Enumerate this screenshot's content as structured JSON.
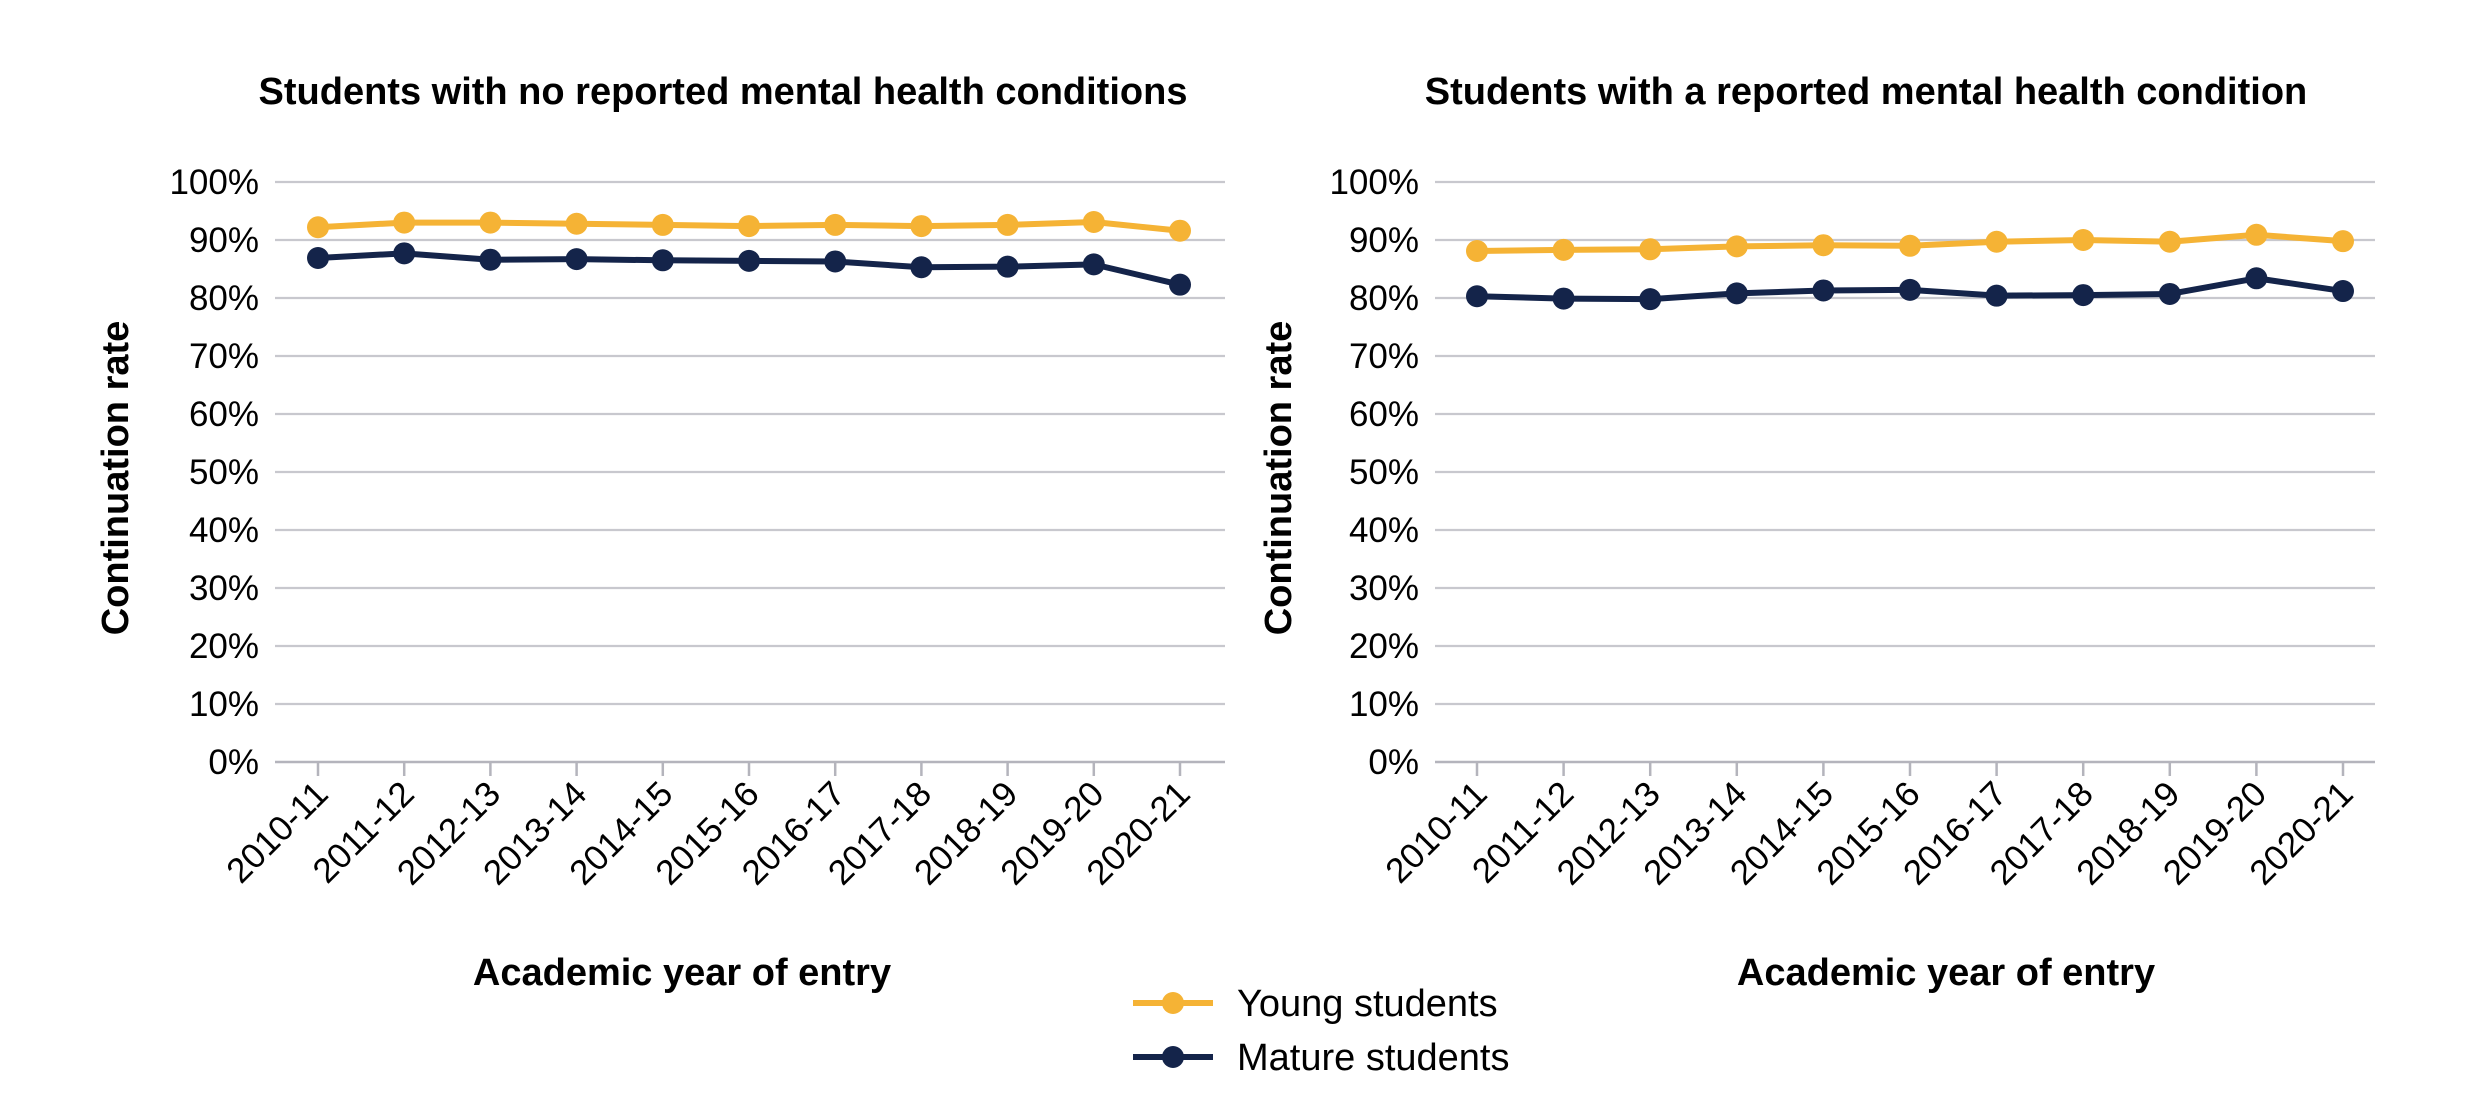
{
  "chart_data": [
    {
      "type": "line",
      "title": "Students with no reported mental health conditions",
      "xlabel": "Academic year of entry",
      "ylabel": "Continuation rate",
      "categories": [
        "2010-11",
        "2011-12",
        "2012-13",
        "2013-14",
        "2014-15",
        "2015-16",
        "2016-17",
        "2017-18",
        "2018-19",
        "2019-20",
        "2020-21"
      ],
      "yticks": [
        "0%",
        "10%",
        "20%",
        "30%",
        "40%",
        "50%",
        "60%",
        "70%",
        "80%",
        "90%",
        "100%"
      ],
      "ylim": [
        0,
        100
      ],
      "grid": true,
      "series": [
        {
          "name": "Young students",
          "color": "#f5b335",
          "values": [
            92.2,
            93.0,
            93.0,
            92.8,
            92.6,
            92.4,
            92.6,
            92.4,
            92.6,
            93.1,
            91.6
          ]
        },
        {
          "name": "Mature students",
          "color": "#14244a",
          "values": [
            86.9,
            87.7,
            86.6,
            86.7,
            86.5,
            86.4,
            86.3,
            85.3,
            85.4,
            85.8,
            82.3
          ]
        }
      ]
    },
    {
      "type": "line",
      "title": "Students with a reported mental health condition",
      "xlabel": "Academic year of entry",
      "ylabel": "Continuation rate",
      "categories": [
        "2010-11",
        "2011-12",
        "2012-13",
        "2013-14",
        "2014-15",
        "2015-16",
        "2016-17",
        "2017-18",
        "2018-19",
        "2019-20",
        "2020-21"
      ],
      "yticks": [
        "0%",
        "10%",
        "20%",
        "30%",
        "40%",
        "50%",
        "60%",
        "70%",
        "80%",
        "90%",
        "100%"
      ],
      "ylim": [
        0,
        100
      ],
      "grid": true,
      "series": [
        {
          "name": "Young students",
          "color": "#f5b335",
          "values": [
            88.1,
            88.3,
            88.4,
            88.9,
            89.1,
            89.0,
            89.7,
            90.0,
            89.7,
            90.9,
            89.8
          ]
        },
        {
          "name": "Mature students",
          "color": "#14244a",
          "values": [
            80.3,
            79.9,
            79.8,
            80.8,
            81.3,
            81.4,
            80.4,
            80.5,
            80.7,
            83.4,
            81.2
          ]
        }
      ]
    }
  ],
  "legend": {
    "placement": "bottom-center",
    "items": [
      {
        "label": "Young students",
        "color": "#f5b335"
      },
      {
        "label": "Mature students",
        "color": "#14244a"
      }
    ]
  }
}
